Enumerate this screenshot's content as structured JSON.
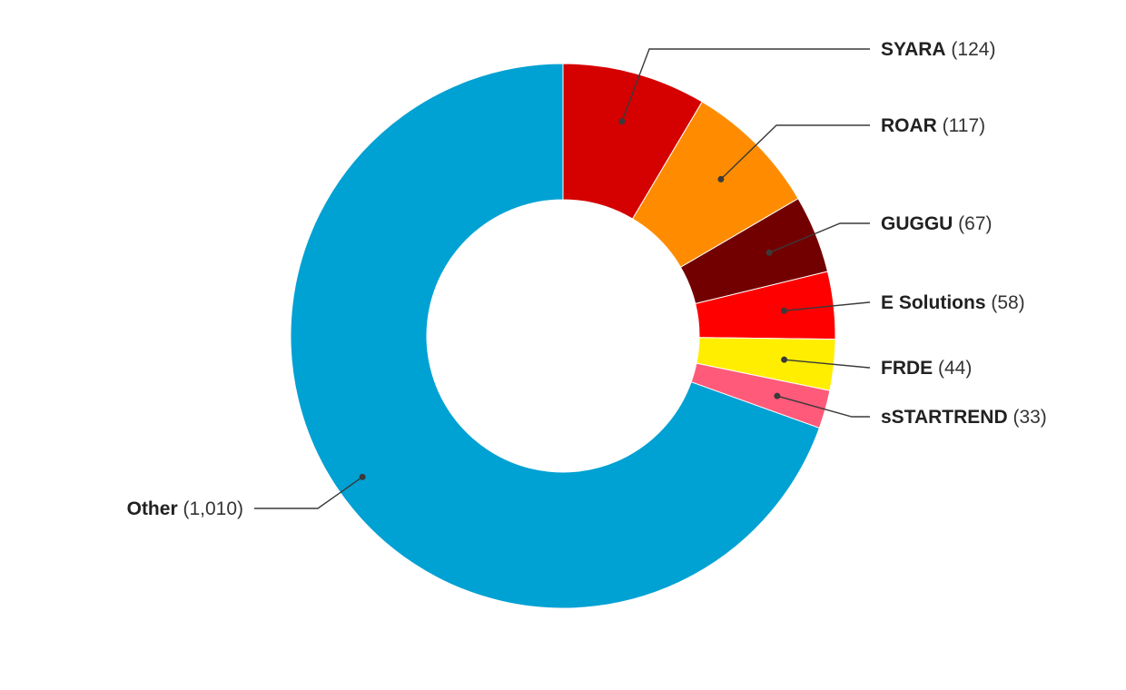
{
  "chart_data": {
    "type": "pie",
    "variant": "donut",
    "title": "",
    "legend": "none",
    "slices": [
      {
        "name": "SYARA",
        "value": 124,
        "display_value": "(124)",
        "color": "#d50000"
      },
      {
        "name": "ROAR",
        "value": 117,
        "display_value": "(117)",
        "color": "#ff8c00"
      },
      {
        "name": "GUGGU",
        "value": 67,
        "display_value": "(67)",
        "color": "#730000"
      },
      {
        "name": "E Solutions",
        "value": 58,
        "display_value": "(58)",
        "color": "#ff0000"
      },
      {
        "name": "FRDE",
        "value": 44,
        "display_value": "(44)",
        "color": "#ffee00"
      },
      {
        "name": "sSTARTREND",
        "value": 33,
        "display_value": "(33)",
        "color": "#ff5a7a"
      },
      {
        "name": "Other",
        "value": 1010,
        "display_value": "(1,010)",
        "color": "#00a1d3"
      }
    ]
  }
}
